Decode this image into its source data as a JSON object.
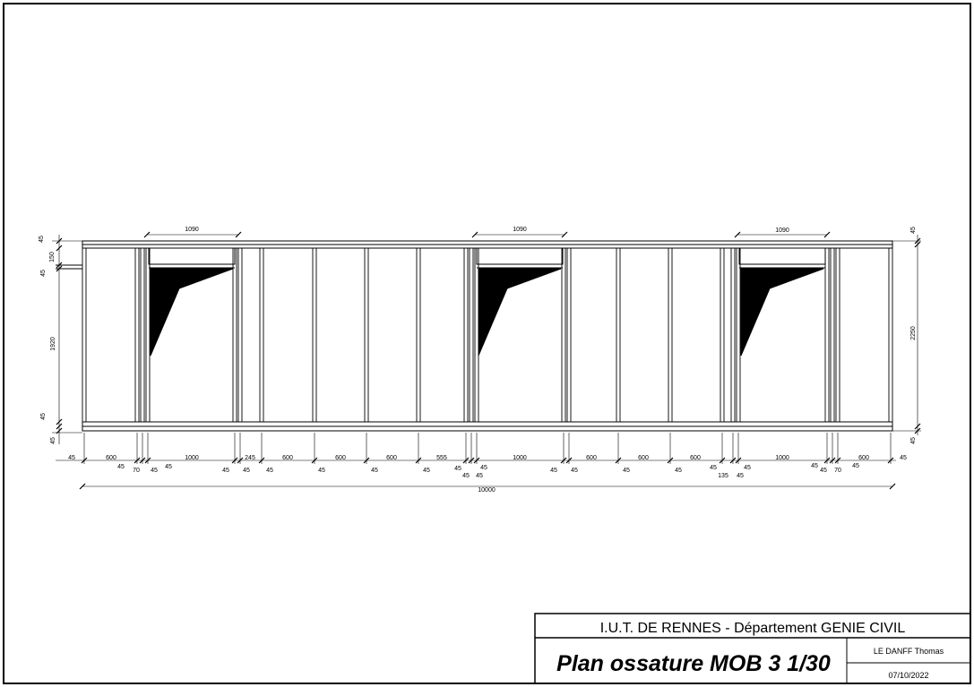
{
  "title_block": {
    "institution": "I.U.T. DE RENNES - Département GENIE CIVIL",
    "title": "Plan ossature MOB 3 1/30",
    "author": "LE DANFF Thomas",
    "date": "07/10/2022"
  },
  "dimensions": {
    "opening_width": "1090",
    "overall_length": "10000",
    "height_total": "2250",
    "height_opening": "1920",
    "lintel": "150",
    "stud": "45",
    "bottom": [
      "45",
      "600",
      "45",
      "70",
      "45",
      "1000",
      "45",
      "245",
      "45",
      "600",
      "45",
      "600",
      "45",
      "600",
      "45",
      "555",
      "45",
      "45",
      "45",
      "1000",
      "45",
      "600",
      "45",
      "600",
      "45",
      "600",
      "45",
      "135",
      "45",
      "1000",
      "45",
      "45",
      "70",
      "45",
      "600",
      "45"
    ]
  }
}
